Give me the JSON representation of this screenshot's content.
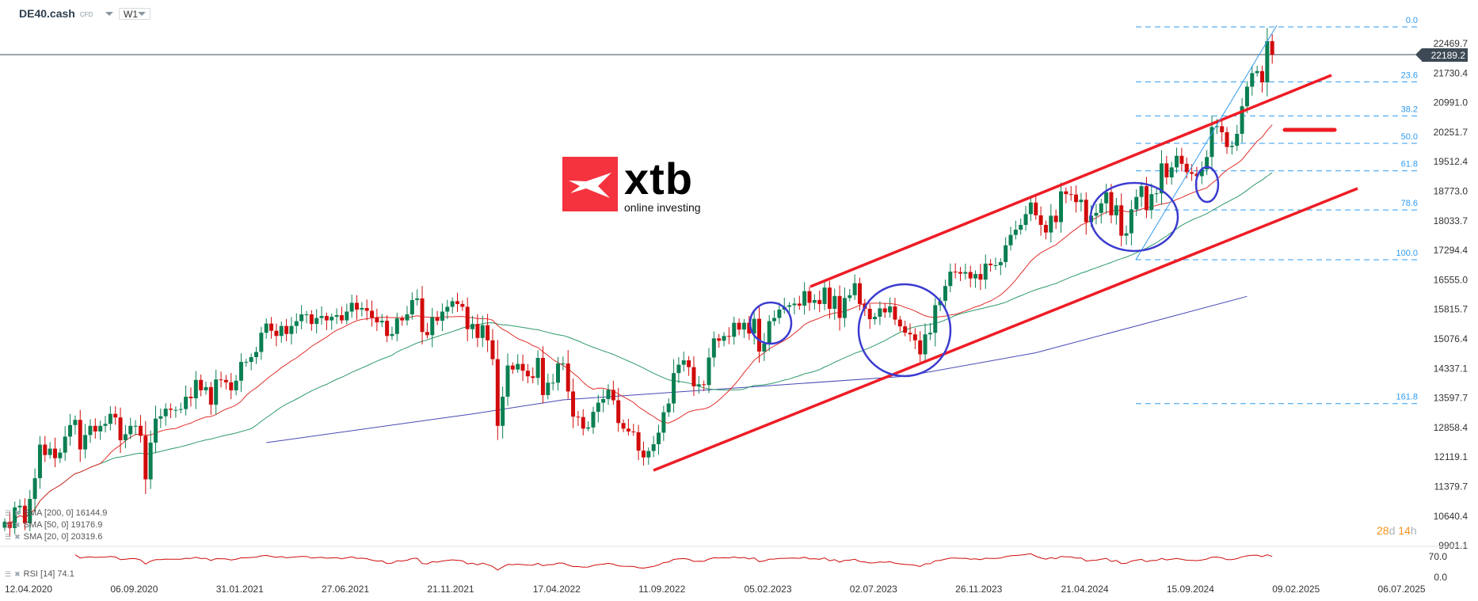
{
  "header": {
    "symbol": "DE40.cash",
    "type": "CFD",
    "timeframe": "W1"
  },
  "logo": {
    "brand": "xtb",
    "tagline": "online investing",
    "color": "#f5333f"
  },
  "legend": {
    "sma200": "SMA [200, 0] 16144.9",
    "sma50": "SMA [50, 0] 19176.9",
    "sma20": "SMA [20, 0] 20319.6",
    "rsi": "RSI [14] 74.1",
    "icons": [
      "menu-icon",
      "close-icon"
    ]
  },
  "countdown": {
    "days": "28",
    "d": "d",
    "hours": "14",
    "h": "h"
  },
  "current_price": "22189.2",
  "colors": {
    "up": "#0b7f52",
    "down": "#d10b0b",
    "sma20": "#e0302c",
    "sma50": "#2e9a6a",
    "sma200": "#4848b4",
    "fib": "#2f9bf0",
    "trendline": "#ee1c25",
    "circle": "#3b3bd0",
    "countdown": "#f7931e"
  },
  "chart_data": {
    "type": "candlestick",
    "interval": "weekly",
    "first_week": "12.04.2020",
    "closes": [
      10500,
      10340,
      10860,
      10900,
      10460,
      11070,
      11590,
      12430,
      12170,
      12330,
      12090,
      12230,
      12630,
      12920,
      13050,
      12310,
      12670,
      12900,
      12760,
      12900,
      12950,
      13200,
      13110,
      12540,
      12690,
      12900,
      12900,
      12650,
      11560,
      12480,
      13080,
      13140,
      13330,
      13300,
      13300,
      13320,
      13630,
      13590,
      14050,
      13790,
      13870,
      13430,
      14060,
      14050,
      13990,
      13790,
      14030,
      14500,
      14500,
      14620,
      14750,
      15230,
      15460,
      15280,
      15150,
      15400,
      15200,
      15400,
      15520,
      15690,
      15690,
      15450,
      15600,
      15650,
      15540,
      15630,
      15670,
      15540,
      15760,
      15980,
      15810,
      15850,
      15780,
      15610,
      15490,
      15530,
      15150,
      15200,
      15590,
      15540,
      15690,
      16050,
      16090,
      15250,
      15170,
      15620,
      15530,
      15760,
      15880,
      16020,
      15950,
      15880,
      15320,
      15450,
      15100,
      15420,
      15040,
      14570,
      12900,
      13630,
      14410,
      14310,
      14450,
      14280,
      14140,
      14100,
      14600,
      13670,
      13980,
      13980,
      14460,
      14460,
      13760,
      13130,
      13120,
      12830,
      12860,
      13250,
      13480,
      13570,
      13800,
      13540,
      12970,
      12830,
      12760,
      12740,
      12280,
      12110,
      12270,
      12440,
      12730,
      13240,
      13460,
      14220,
      14430,
      14540,
      14370,
      13890,
      13940,
      13920,
      14610,
      15090,
      15030,
      15150,
      15130,
      15480,
      15310,
      15480,
      15210,
      15580,
      14760,
      14960,
      15520,
      15600,
      15810,
      15880,
      15920,
      15960,
      15910,
      16270,
      15980,
      16050,
      15950,
      16360,
      15830,
      16150,
      15600,
      16100,
      16170,
      16470,
      15950,
      15830,
      15570,
      15630,
      15840,
      15740,
      15890,
      15560,
      15390,
      15230,
      15190,
      15040,
      14690,
      15190,
      15230,
      15920,
      16030,
      16400,
      16760,
      16750,
      16710,
      16750,
      16590,
      16700,
      16560,
      16960,
      16920,
      16920,
      17000,
      17420,
      17680,
      17810,
      17930,
      18200,
      18490,
      18170,
      17930,
      17740,
      18160,
      18000,
      18770,
      18700,
      18690,
      18500,
      18560,
      18000,
      18160,
      18230,
      18470,
      18750,
      18170,
      18420,
      17660,
      17720,
      18320,
      18630,
      18900,
      18300,
      18700,
      18720,
      19470,
      19120,
      19370,
      19660,
      19460,
      19250,
      19210,
      19150,
      19320,
      19630,
      20380,
      20400,
      20250,
      19880,
      19910,
      20210,
      20900,
      21390,
      21730,
      21780,
      21500,
      22530,
      22190
    ],
    "sma200_points": [
      [
        "11.04.2021",
        12480
      ],
      [
        "23.01.2022",
        13200
      ],
      [
        "29.05.2022",
        13550
      ],
      [
        "17.09.2023",
        14140
      ],
      [
        "17.03.2024",
        14730
      ],
      [
        "05.01.2025",
        16140
      ]
    ],
    "y_ticks": [
      "22469.7",
      "21730.4",
      "20991.0",
      "20251.7",
      "19512.4",
      "18773.0",
      "18033.7",
      "17294.4",
      "16555.0",
      "15815.7",
      "15076.4",
      "14337.1",
      "13597.7",
      "12858.4",
      "12119.1",
      "11379.7",
      "10640.4",
      "9901.1"
    ],
    "x_ticks": [
      "12.04.2020",
      "06.09.2020",
      "31.01.2021",
      "27.06.2021",
      "21.11.2021",
      "17.04.2022",
      "11.09.2022",
      "05.02.2023",
      "02.07.2023",
      "26.11.2023",
      "21.04.2024",
      "15.09.2024",
      "09.02.2025",
      "06.07.2025"
    ],
    "rsi_ticks": [
      "70.0",
      "0.0"
    ],
    "fibonacci": {
      "high": 22886,
      "low": 17058,
      "levels": [
        "0.0",
        "23.6",
        "38.2",
        "50.0",
        "61.8",
        "78.6",
        "100.0",
        "161.8"
      ]
    }
  }
}
